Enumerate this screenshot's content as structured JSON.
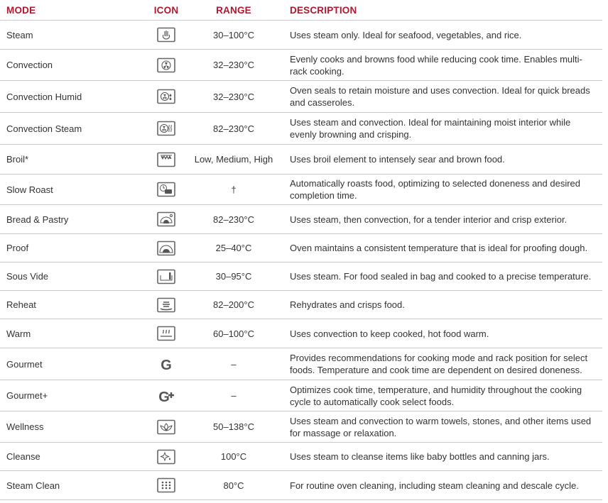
{
  "headers": {
    "mode": "MODE",
    "icon": "ICON",
    "range": "RANGE",
    "description": "DESCRIPTION"
  },
  "accent_color": "#b3172f",
  "rows": [
    {
      "mode": "Steam",
      "icon": "steam-icon",
      "range": "30–100°C",
      "description": "Uses steam only. Ideal for seafood, vegetables, and rice."
    },
    {
      "mode": "Convection",
      "icon": "fan-icon",
      "range": "32–230°C",
      "description": "Evenly cooks and browns food while reducing cook time. Enables multi-rack cooking."
    },
    {
      "mode": "Convection Humid",
      "icon": "fan-droplet-icon",
      "range": "32–230°C",
      "description": "Oven seals to retain moisture and uses convection. Ideal for quick breads and casseroles."
    },
    {
      "mode": "Convection Steam",
      "icon": "fan-steam-icon",
      "range": "82–230°C",
      "description": "Uses steam and convection. Ideal for maintaining moist interior while evenly browning and crisping."
    },
    {
      "mode": "Broil*",
      "icon": "broil-icon",
      "range": "Low, Medium, High",
      "description": "Uses broil element to intensely sear and brown food."
    },
    {
      "mode": "Slow Roast",
      "icon": "clock-pot-icon",
      "range": "†",
      "description": "Automatically roasts food, optimizing to selected doneness and desired completion time."
    },
    {
      "mode": "Bread & Pastry",
      "icon": "bread-pastry-icon",
      "range": "82–230°C",
      "description": "Uses steam, then convection, for a tender interior and crisp exterior."
    },
    {
      "mode": "Proof",
      "icon": "proof-icon",
      "range": "25–40°C",
      "description": "Oven maintains a consistent temperature that is ideal for proofing dough."
    },
    {
      "mode": "Sous Vide",
      "icon": "sous-vide-icon",
      "range": "30–95°C",
      "description": "Uses steam. For food sealed in bag and cooked to a precise temperature."
    },
    {
      "mode": "Reheat",
      "icon": "reheat-icon",
      "range": "82–200°C",
      "description": "Rehydrates and crisps food."
    },
    {
      "mode": "Warm",
      "icon": "warm-icon",
      "range": "60–100°C",
      "description": "Uses convection to keep cooked, hot food warm."
    },
    {
      "mode": "Gourmet",
      "icon": "gourmet-icon",
      "range": "–",
      "description": "Provides recommendations for cooking mode and rack position for select foods. Temperature and cook time are dependent on desired doneness."
    },
    {
      "mode": "Gourmet+",
      "icon": "gourmet-plus-icon",
      "range": "–",
      "description": "Optimizes cook time, temperature, and humidity throughout the cooking cycle to automatically cook select foods."
    },
    {
      "mode": "Wellness",
      "icon": "lotus-icon",
      "range": "50–138°C",
      "description": "Uses steam and convection to warm towels, stones, and other items used for massage or relaxation."
    },
    {
      "mode": "Cleanse",
      "icon": "sparkle-icon",
      "range": "100°C",
      "description": "Uses steam to cleanse items like baby bottles and canning jars."
    },
    {
      "mode": "Steam Clean",
      "icon": "steam-clean-icon",
      "range": "80°C",
      "description": "For routine oven cleaning, including steam cleaning and descale cycle."
    }
  ]
}
